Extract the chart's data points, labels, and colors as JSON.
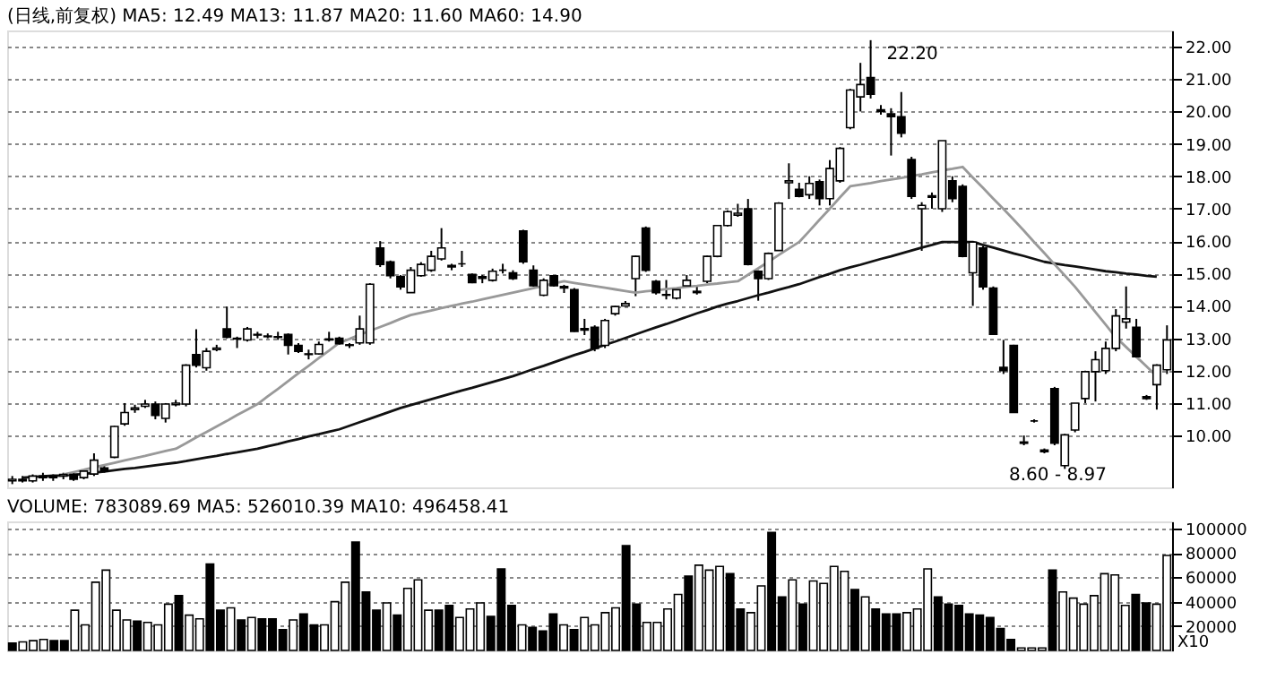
{
  "chart_data": [
    {
      "type": "candlestick",
      "title": "(日线,前复权)  MA5: 12.49  MA13: 11.87  MA20: 11.60  MA60: 14.90",
      "categories": [
        null,
        null,
        null,
        null,
        null,
        null,
        null,
        null,
        null,
        null,
        null,
        null,
        null,
        null,
        null,
        null,
        null,
        null,
        null,
        null,
        null,
        null,
        null,
        null,
        null,
        null,
        null,
        null,
        null,
        null,
        null,
        null,
        null,
        null,
        null,
        null,
        null,
        null,
        null,
        null,
        null,
        null,
        null,
        null,
        null,
        null,
        null,
        null,
        null,
        null,
        null,
        null,
        null,
        null,
        null,
        null,
        null,
        null,
        null,
        null,
        null,
        null,
        null,
        null,
        null,
        null,
        null,
        null,
        null,
        null,
        null,
        null,
        null,
        null,
        null,
        null,
        null,
        null,
        null,
        null,
        null,
        null,
        null,
        null,
        null,
        null,
        null,
        null,
        null,
        null,
        null,
        null,
        null,
        null,
        null,
        null,
        null,
        null,
        null,
        null,
        null,
        null,
        null,
        null,
        null,
        null,
        null,
        null,
        null,
        null,
        null,
        null,
        null,
        null
      ],
      "ohlc": [
        [
          8.6,
          8.75,
          8.5,
          8.65
        ],
        [
          8.65,
          8.75,
          8.55,
          8.6
        ],
        [
          8.6,
          8.8,
          8.55,
          8.75
        ],
        [
          8.75,
          8.85,
          8.6,
          8.7
        ],
        [
          8.7,
          8.8,
          8.6,
          8.75
        ],
        [
          8.75,
          8.85,
          8.65,
          8.8
        ],
        [
          8.8,
          8.85,
          8.6,
          8.65
        ],
        [
          8.7,
          8.95,
          8.65,
          8.9
        ],
        [
          8.81,
          9.45,
          8.75,
          9.24
        ],
        [
          9.0,
          9.1,
          8.85,
          8.9
        ],
        [
          9.33,
          10.3,
          9.3,
          10.28
        ],
        [
          10.36,
          11.0,
          10.3,
          10.71
        ],
        [
          10.8,
          10.95,
          10.7,
          10.85
        ],
        [
          10.9,
          11.1,
          10.85,
          10.97
        ],
        [
          10.97,
          11.05,
          10.5,
          10.62
        ],
        [
          10.53,
          11.0,
          10.4,
          10.97
        ],
        [
          10.95,
          11.1,
          10.9,
          11.0
        ],
        [
          10.97,
          12.2,
          10.9,
          12.17
        ],
        [
          12.5,
          13.28,
          12.1,
          12.17
        ],
        [
          12.09,
          12.7,
          12.0,
          12.6
        ],
        [
          12.65,
          12.8,
          12.6,
          12.7
        ],
        [
          13.29,
          13.98,
          13.0,
          13.03
        ],
        [
          13.0,
          13.05,
          12.7,
          12.98
        ],
        [
          12.95,
          13.35,
          12.9,
          13.29
        ],
        [
          13.1,
          13.2,
          13.0,
          13.12
        ],
        [
          13.07,
          13.15,
          13.0,
          13.05
        ],
        [
          13.05,
          13.2,
          12.95,
          13.03
        ],
        [
          13.12,
          13.15,
          12.5,
          12.78
        ],
        [
          12.78,
          12.85,
          12.55,
          12.6
        ],
        [
          12.5,
          12.65,
          12.35,
          12.52
        ],
        [
          12.52,
          12.9,
          12.5,
          12.81
        ],
        [
          12.95,
          13.2,
          12.9,
          12.98
        ],
        [
          13.0,
          13.05,
          12.8,
          12.83
        ],
        [
          12.8,
          12.85,
          12.7,
          12.78
        ],
        [
          12.86,
          13.7,
          12.8,
          13.29
        ],
        [
          12.86,
          14.7,
          12.8,
          14.67
        ],
        [
          15.79,
          16.0,
          15.2,
          15.28
        ],
        [
          15.36,
          15.4,
          14.85,
          14.93
        ],
        [
          14.9,
          14.95,
          14.5,
          14.59
        ],
        [
          14.41,
          15.2,
          14.4,
          15.1
        ],
        [
          14.93,
          15.35,
          14.9,
          15.28
        ],
        [
          15.1,
          15.7,
          15.05,
          15.53
        ],
        [
          15.45,
          16.4,
          15.4,
          15.79
        ],
        [
          15.25,
          15.3,
          15.1,
          15.2
        ],
        [
          15.3,
          15.7,
          15.2,
          15.3
        ],
        [
          14.97,
          15.0,
          14.7,
          14.72
        ],
        [
          14.9,
          14.95,
          14.7,
          14.85
        ],
        [
          14.79,
          15.15,
          14.75,
          15.07
        ],
        [
          15.1,
          15.3,
          15.0,
          15.1
        ],
        [
          15.02,
          15.1,
          14.8,
          14.84
        ],
        [
          16.31,
          16.35,
          15.3,
          15.36
        ],
        [
          15.1,
          15.25,
          14.6,
          14.62
        ],
        [
          14.33,
          14.85,
          14.3,
          14.79
        ],
        [
          14.93,
          14.95,
          14.6,
          14.62
        ],
        [
          14.6,
          14.65,
          14.4,
          14.55
        ],
        [
          14.5,
          14.55,
          13.2,
          13.21
        ],
        [
          13.3,
          13.6,
          13.1,
          13.25
        ],
        [
          13.34,
          13.4,
          12.6,
          12.69
        ],
        [
          12.78,
          13.6,
          12.7,
          13.55
        ],
        [
          13.76,
          14.0,
          13.7,
          13.98
        ],
        [
          14.0,
          14.15,
          14.0,
          14.07
        ],
        [
          14.84,
          15.55,
          14.3,
          15.53
        ],
        [
          16.4,
          16.45,
          15.05,
          15.1
        ],
        [
          14.76,
          14.8,
          14.35,
          14.41
        ],
        [
          14.35,
          14.8,
          14.2,
          14.33
        ],
        [
          14.24,
          14.55,
          14.2,
          14.5
        ],
        [
          14.62,
          14.95,
          14.6,
          14.79
        ],
        [
          14.45,
          14.6,
          14.35,
          14.41
        ],
        [
          14.76,
          15.55,
          14.7,
          15.53
        ],
        [
          15.53,
          16.5,
          15.5,
          16.48
        ],
        [
          16.48,
          16.95,
          16.45,
          16.91
        ],
        [
          16.8,
          17.15,
          16.75,
          16.86
        ],
        [
          17.0,
          17.3,
          15.25,
          15.28
        ],
        [
          15.07,
          15.1,
          14.16,
          14.84
        ],
        [
          14.84,
          15.65,
          14.8,
          15.62
        ],
        [
          15.71,
          17.2,
          15.7,
          17.17
        ],
        [
          17.8,
          18.4,
          17.3,
          17.86
        ],
        [
          17.6,
          17.8,
          17.35,
          17.38
        ],
        [
          17.43,
          18.0,
          17.3,
          17.78
        ],
        [
          17.83,
          17.9,
          17.1,
          17.31
        ],
        [
          17.31,
          18.5,
          17.1,
          18.24
        ],
        [
          17.86,
          18.9,
          17.8,
          18.86
        ],
        [
          19.5,
          20.7,
          19.45,
          20.66
        ],
        [
          20.45,
          21.5,
          20.0,
          20.83
        ],
        [
          21.05,
          22.2,
          20.4,
          20.53
        ],
        [
          20.05,
          20.2,
          19.9,
          20.0
        ],
        [
          19.93,
          20.1,
          18.64,
          19.84
        ],
        [
          19.84,
          20.6,
          19.2,
          19.33
        ],
        [
          18.52,
          18.6,
          17.3,
          17.38
        ],
        [
          17.0,
          17.2,
          15.7,
          17.1
        ],
        [
          17.4,
          17.5,
          17.0,
          17.35
        ],
        [
          17.0,
          19.1,
          16.9,
          19.1
        ],
        [
          17.86,
          18.0,
          17.2,
          17.31
        ],
        [
          17.69,
          17.75,
          15.5,
          15.53
        ],
        [
          15.02,
          16.0,
          14.0,
          15.97
        ],
        [
          15.79,
          15.85,
          14.5,
          14.59
        ],
        [
          14.55,
          14.6,
          13.1,
          13.12
        ],
        [
          12.1,
          12.95,
          11.9,
          12.0
        ],
        [
          12.78,
          12.8,
          10.7,
          10.71
        ],
        [
          9.8,
          10.0,
          9.7,
          9.76
        ],
        [
          10.45,
          10.5,
          10.4,
          10.45
        ],
        [
          9.55,
          9.6,
          9.45,
          9.5
        ],
        [
          11.45,
          11.5,
          9.7,
          9.76
        ],
        [
          9.07,
          10.05,
          8.97,
          10.02
        ],
        [
          10.17,
          11.0,
          10.1,
          11.0
        ],
        [
          11.14,
          12.0,
          11.0,
          11.97
        ],
        [
          11.97,
          12.6,
          11.05,
          12.34
        ],
        [
          12.0,
          12.9,
          11.9,
          12.69
        ],
        [
          12.69,
          13.9,
          12.6,
          13.69
        ],
        [
          13.5,
          14.6,
          13.3,
          13.6
        ],
        [
          13.34,
          13.6,
          12.4,
          12.43
        ],
        [
          11.2,
          11.25,
          11.1,
          11.14
        ],
        [
          11.57,
          12.2,
          10.8,
          12.17
        ],
        [
          12.03,
          13.4,
          11.9,
          12.95
        ]
      ],
      "series": [
        {
          "type": "line",
          "color": "#111111",
          "values": [
            null,
            8.7,
            8.72,
            8.74,
            8.76,
            8.77,
            8.79,
            8.81,
            8.85,
            8.89,
            8.93,
            8.97,
            9.0,
            9.04,
            9.08,
            9.12,
            9.16,
            9.21,
            9.27,
            9.32,
            9.37,
            9.43,
            9.48,
            9.54,
            9.59,
            9.67,
            9.74,
            9.82,
            9.89,
            9.97,
            10.04,
            10.12,
            10.19,
            10.3,
            10.41,
            10.52,
            10.63,
            10.74,
            10.85,
            10.94,
            11.03,
            11.12,
            11.21,
            11.3,
            11.39,
            11.47,
            11.56,
            11.65,
            11.74,
            11.83,
            11.94,
            12.05,
            12.15,
            12.26,
            12.37,
            12.48,
            12.58,
            12.69,
            12.8,
            12.9,
            13.01,
            13.12,
            13.23,
            13.34,
            13.44,
            13.55,
            13.66,
            13.77,
            13.87,
            13.98,
            14.07,
            14.15,
            14.24,
            14.33,
            14.41,
            14.5,
            14.58,
            14.67,
            14.78,
            14.89,
            14.99,
            15.1,
            15.19,
            15.27,
            15.36,
            15.45,
            15.53,
            15.62,
            15.71,
            15.8,
            15.88,
            15.97,
            15.97,
            15.97,
            15.97,
            15.88,
            15.8,
            15.71,
            15.62,
            15.54,
            15.45,
            15.36,
            15.31,
            15.26,
            15.22,
            15.17,
            15.12,
            15.07,
            15.04,
            15.0,
            14.97,
            14.93,
            14.9,
            null
          ]
        },
        {
          "type": "line",
          "color": "#999999",
          "values": [
            null,
            null,
            null,
            null,
            null,
            8.8,
            8.87,
            8.94,
            9.02,
            9.09,
            9.16,
            9.23,
            9.3,
            9.37,
            9.45,
            9.52,
            9.59,
            9.76,
            9.94,
            10.11,
            10.28,
            10.45,
            10.63,
            10.8,
            10.97,
            11.21,
            11.44,
            11.68,
            11.92,
            12.15,
            12.39,
            12.62,
            12.86,
            12.98,
            13.11,
            13.23,
            13.35,
            13.47,
            13.6,
            13.72,
            13.79,
            13.86,
            13.93,
            14.0,
            14.07,
            14.13,
            14.2,
            14.27,
            14.34,
            14.41,
            14.48,
            14.55,
            14.62,
            14.69,
            14.76,
            14.71,
            14.66,
            14.61,
            14.56,
            14.51,
            14.46,
            14.41,
            14.45,
            14.48,
            14.52,
            14.55,
            14.59,
            14.62,
            14.66,
            14.69,
            14.73,
            14.76,
            14.96,
            15.16,
            15.36,
            15.57,
            15.77,
            15.97,
            16.31,
            16.66,
            17.0,
            17.35,
            17.69,
            17.74,
            17.79,
            17.85,
            17.9,
            17.95,
            18.01,
            18.06,
            18.12,
            18.18,
            18.23,
            18.29,
            17.96,
            17.64,
            17.31,
            16.99,
            16.66,
            16.32,
            15.97,
            15.63,
            15.28,
            14.94,
            14.59,
            14.2,
            13.81,
            13.42,
            13.03,
            12.73,
            12.43,
            12.13,
            11.83,
            null
          ]
        }
      ],
      "ylim": [
        8.4,
        22.5
      ],
      "yticks": [
        {
          "value": 10,
          "label": "10.00"
        },
        {
          "value": 11,
          "label": "11.00"
        },
        {
          "value": 12,
          "label": "12.00"
        },
        {
          "value": 13,
          "label": "13.00"
        },
        {
          "value": 14,
          "label": "14.00"
        },
        {
          "value": 15,
          "label": "15.00"
        },
        {
          "value": 16,
          "label": "16.00"
        },
        {
          "value": 17,
          "label": "17.00"
        },
        {
          "value": 18,
          "label": "18.00"
        },
        {
          "value": 19,
          "label": "19.00"
        },
        {
          "value": 20,
          "label": "20.00"
        },
        {
          "value": 21,
          "label": "21.00"
        },
        {
          "value": 22,
          "label": "22.00"
        }
      ],
      "grid": "y",
      "tick_labels": "y",
      "annotations": [
        "22.20",
        "8.60 - 8.97"
      ]
    },
    {
      "type": "bar",
      "title": "VOLUME: 783089.69  MA5: 526010.39  MA10: 496458.41",
      "categories": [
        null,
        null,
        null,
        null,
        null,
        null,
        null,
        null,
        null,
        null,
        null,
        null,
        null,
        null,
        null,
        null,
        null,
        null,
        null,
        null,
        null,
        null,
        null,
        null,
        null,
        null,
        null,
        null,
        null,
        null,
        null,
        null,
        null,
        null,
        null,
        null,
        null,
        null,
        null,
        null,
        null,
        null,
        null,
        null,
        null,
        null,
        null,
        null,
        null,
        null,
        null,
        null,
        null,
        null,
        null,
        null,
        null,
        null,
        null,
        null,
        null,
        null,
        null,
        null,
        null,
        null,
        null,
        null,
        null,
        null,
        null,
        null,
        null,
        null,
        null,
        null,
        null,
        null,
        null,
        null,
        null,
        null,
        null,
        null,
        null,
        null,
        null,
        null,
        null,
        null,
        null,
        null,
        null,
        null,
        null,
        null,
        null,
        null,
        null,
        null,
        null,
        null,
        null,
        null,
        null,
        null,
        null,
        null,
        null,
        null,
        null,
        null
      ],
      "values": [
        6000,
        7000,
        8000,
        9000,
        8000,
        8000,
        33000,
        21000,
        56000,
        66000,
        33000,
        25000,
        24000,
        23000,
        21000,
        38000,
        45000,
        29000,
        26000,
        71000,
        33000,
        35000,
        25000,
        27000,
        26000,
        26000,
        17000,
        25000,
        30000,
        21000,
        21000,
        40000,
        56000,
        89000,
        48000,
        33000,
        39000,
        29000,
        51000,
        58000,
        33000,
        33000,
        37000,
        27000,
        34000,
        39000,
        28000,
        67000,
        37000,
        21000,
        19000,
        16000,
        30000,
        21000,
        17000,
        27000,
        21000,
        31000,
        35000,
        86000,
        38000,
        23000,
        23000,
        34000,
        46000,
        61000,
        70000,
        66000,
        69000,
        63000,
        34000,
        31000,
        53000,
        97000,
        44000,
        58000,
        38000,
        57000,
        55000,
        69000,
        65000,
        50000,
        44000,
        34000,
        30000,
        30000,
        31000,
        34000,
        67000,
        44000,
        38000,
        37000,
        30000,
        29000,
        27000,
        18000,
        9000,
        2000,
        2000,
        2000,
        66000,
        48000,
        43000,
        38000,
        45000,
        63000,
        62000,
        37000,
        46000,
        39000,
        38000,
        78000
      ],
      "colors": [
        "#000000",
        "#ffffff",
        "#ffffff",
        "#ffffff",
        "#000000",
        "#000000",
        "#ffffff",
        "#ffffff",
        "#ffffff",
        "#ffffff",
        "#ffffff",
        "#ffffff",
        "#000000",
        "#ffffff",
        "#ffffff",
        "#ffffff",
        "#000000",
        "#ffffff",
        "#ffffff",
        "#000000",
        "#000000",
        "#ffffff",
        "#000000",
        "#ffffff",
        "#000000",
        "#000000",
        "#000000",
        "#ffffff",
        "#000000",
        "#000000",
        "#ffffff",
        "#ffffff",
        "#ffffff",
        "#000000",
        "#000000",
        "#000000",
        "#ffffff",
        "#000000",
        "#ffffff",
        "#ffffff",
        "#ffffff",
        "#000000",
        "#000000",
        "#ffffff",
        "#ffffff",
        "#ffffff",
        "#000000",
        "#000000",
        "#000000",
        "#ffffff",
        "#000000",
        "#000000",
        "#000000",
        "#ffffff",
        "#000000",
        "#ffffff",
        "#ffffff",
        "#ffffff",
        "#ffffff",
        "#000000",
        "#000000",
        "#ffffff",
        "#ffffff",
        "#ffffff",
        "#ffffff",
        "#000000",
        "#ffffff",
        "#ffffff",
        "#ffffff",
        "#000000",
        "#000000",
        "#ffffff",
        "#ffffff",
        "#000000",
        "#000000",
        "#ffffff",
        "#000000",
        "#ffffff",
        "#ffffff",
        "#ffffff",
        "#ffffff",
        "#000000",
        "#ffffff",
        "#000000",
        "#000000",
        "#000000",
        "#ffffff",
        "#ffffff",
        "#ffffff",
        "#000000",
        "#000000",
        "#000000",
        "#000000",
        "#000000",
        "#000000",
        "#000000",
        "#000000",
        "#ffffff",
        "#ffffff",
        "#ffffff",
        "#000000",
        "#ffffff",
        "#ffffff",
        "#ffffff",
        "#ffffff",
        "#ffffff",
        "#ffffff",
        "#ffffff",
        "#000000",
        "#000000",
        "#ffffff",
        "#ffffff"
      ],
      "ylim": [
        0,
        106000
      ],
      "yticks": [
        20000,
        40000,
        60000,
        80000,
        100000
      ],
      "grid": "y",
      "tick_labels": "y",
      "annotations": [
        "X10"
      ]
    }
  ]
}
